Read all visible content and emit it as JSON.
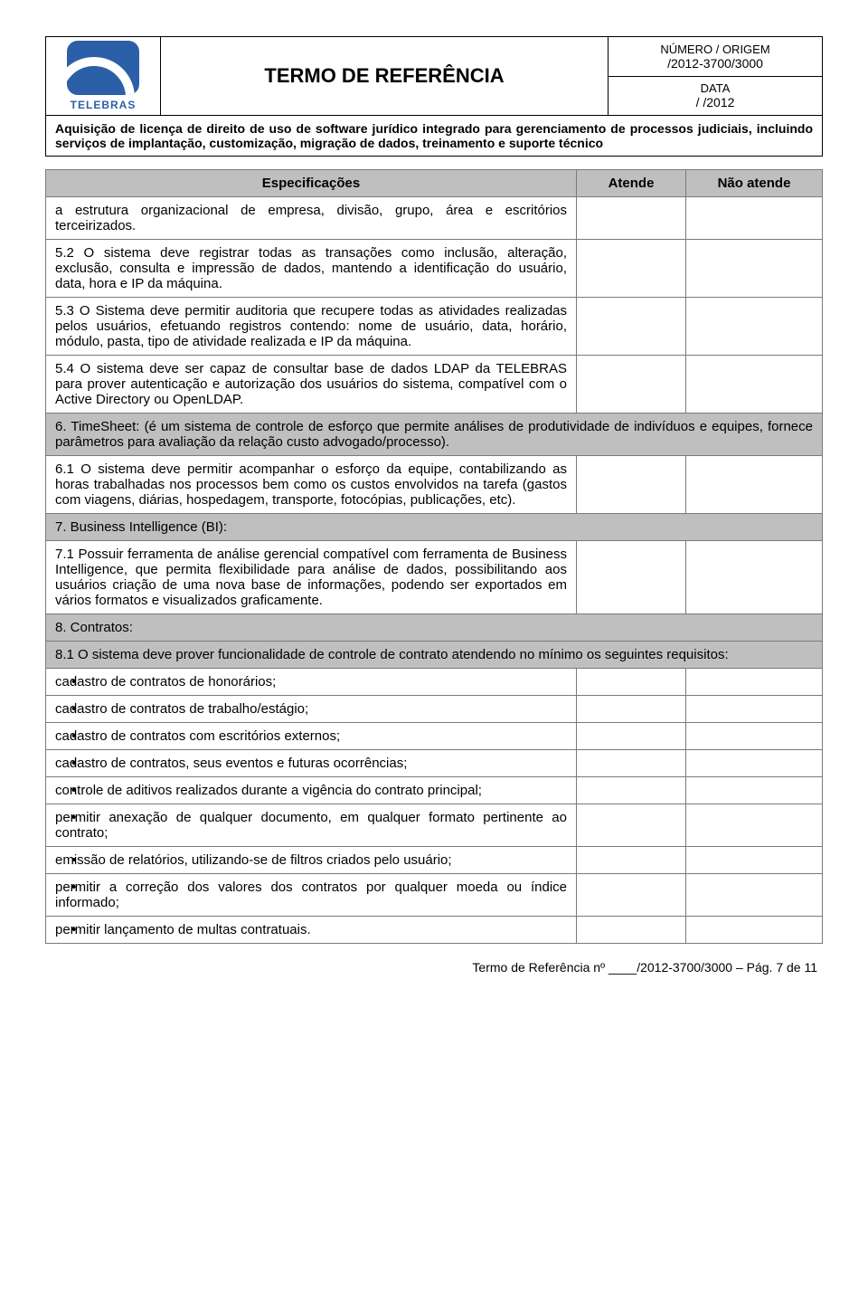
{
  "header": {
    "logo_text": "TELEBRAS",
    "title": "TERMO DE REFERÊNCIA",
    "numero_label": "NÚMERO / ORIGEM",
    "numero_value": "/2012-3700/3000",
    "data_label": "DATA",
    "data_value": "/    /2012",
    "subtitle": "Aquisição de licença de direito de uso de software jurídico integrado para gerenciamento de processos judiciais, incluindo serviços de implantação, customização, migração de dados, treinamento e suporte técnico"
  },
  "table": {
    "col_spec": "Especificações",
    "col_atende": "Atende",
    "col_nao": "Não atende",
    "row_5_1b": "a estrutura organizacional de empresa, divisão, grupo, área e escritórios terceirizados.",
    "row_5_2": "5.2 O sistema deve registrar todas as transações como inclusão, alteração, exclusão, consulta e impressão de dados, mantendo a identificação do usuário, data, hora e IP da máquina.",
    "row_5_3": "5.3 O Sistema deve permitir auditoria que recupere todas as atividades realizadas pelos usuários, efetuando registros contendo: nome de usuário, data, horário, módulo, pasta, tipo de atividade realizada e IP da máquina.",
    "row_5_4": "5.4 O sistema deve ser capaz de consultar base de dados LDAP da TELEBRAS para prover autenticação e autorização dos usuários do sistema, compatível com o Active Directory ou OpenLDAP.",
    "section_6": "6. TimeSheet: (é um sistema de controle de esforço que permite análises de produtividade de indivíduos e equipes, fornece parâmetros para avaliação da relação custo advogado/processo).",
    "row_6_1": "6.1 O sistema deve permitir acompanhar o esforço da equipe, contabilizando as horas trabalhadas nos processos bem como os custos envolvidos na tarefa (gastos com viagens, diárias, hospedagem, transporte, fotocópias, publicações, etc).",
    "section_7": "7. Business Intelligence (BI):",
    "row_7_1": "7.1 Possuir ferramenta de análise gerencial compatível com ferramenta de Business Intelligence, que permita flexibilidade para análise de dados, possibilitando aos usuários criação de uma nova base de informações, podendo ser exportados em vários formatos e visualizados graficamente.",
    "section_8": "8. Contratos:",
    "row_8_1": "8.1 O sistema deve prover funcionalidade de controle de contrato atendendo no mínimo os seguintes requisitos:",
    "bullets": [
      "cadastro de contratos de honorários;",
      "cadastro de contratos de trabalho/estágio;",
      "cadastro de contratos com escritórios externos;",
      "cadastro de contratos, seus eventos e futuras ocorrências;",
      "controle de aditivos realizados durante a vigência do contrato principal;",
      "permitir anexação de qualquer documento, em qualquer formato pertinente ao contrato;",
      "emissão de relatórios, utilizando-se de filtros criados pelo usuário;",
      "permitir a correção dos valores dos contratos por qualquer moeda ou índice informado;",
      "permitir lançamento de multas contratuais."
    ]
  },
  "footer": "Termo de Referência nº ____/2012-3700/3000 – Pág. 7 de 11",
  "style": {
    "header_bg": "#bfbfbf",
    "border": "#7a7a7a",
    "logo_color": "#2b5fa8"
  }
}
